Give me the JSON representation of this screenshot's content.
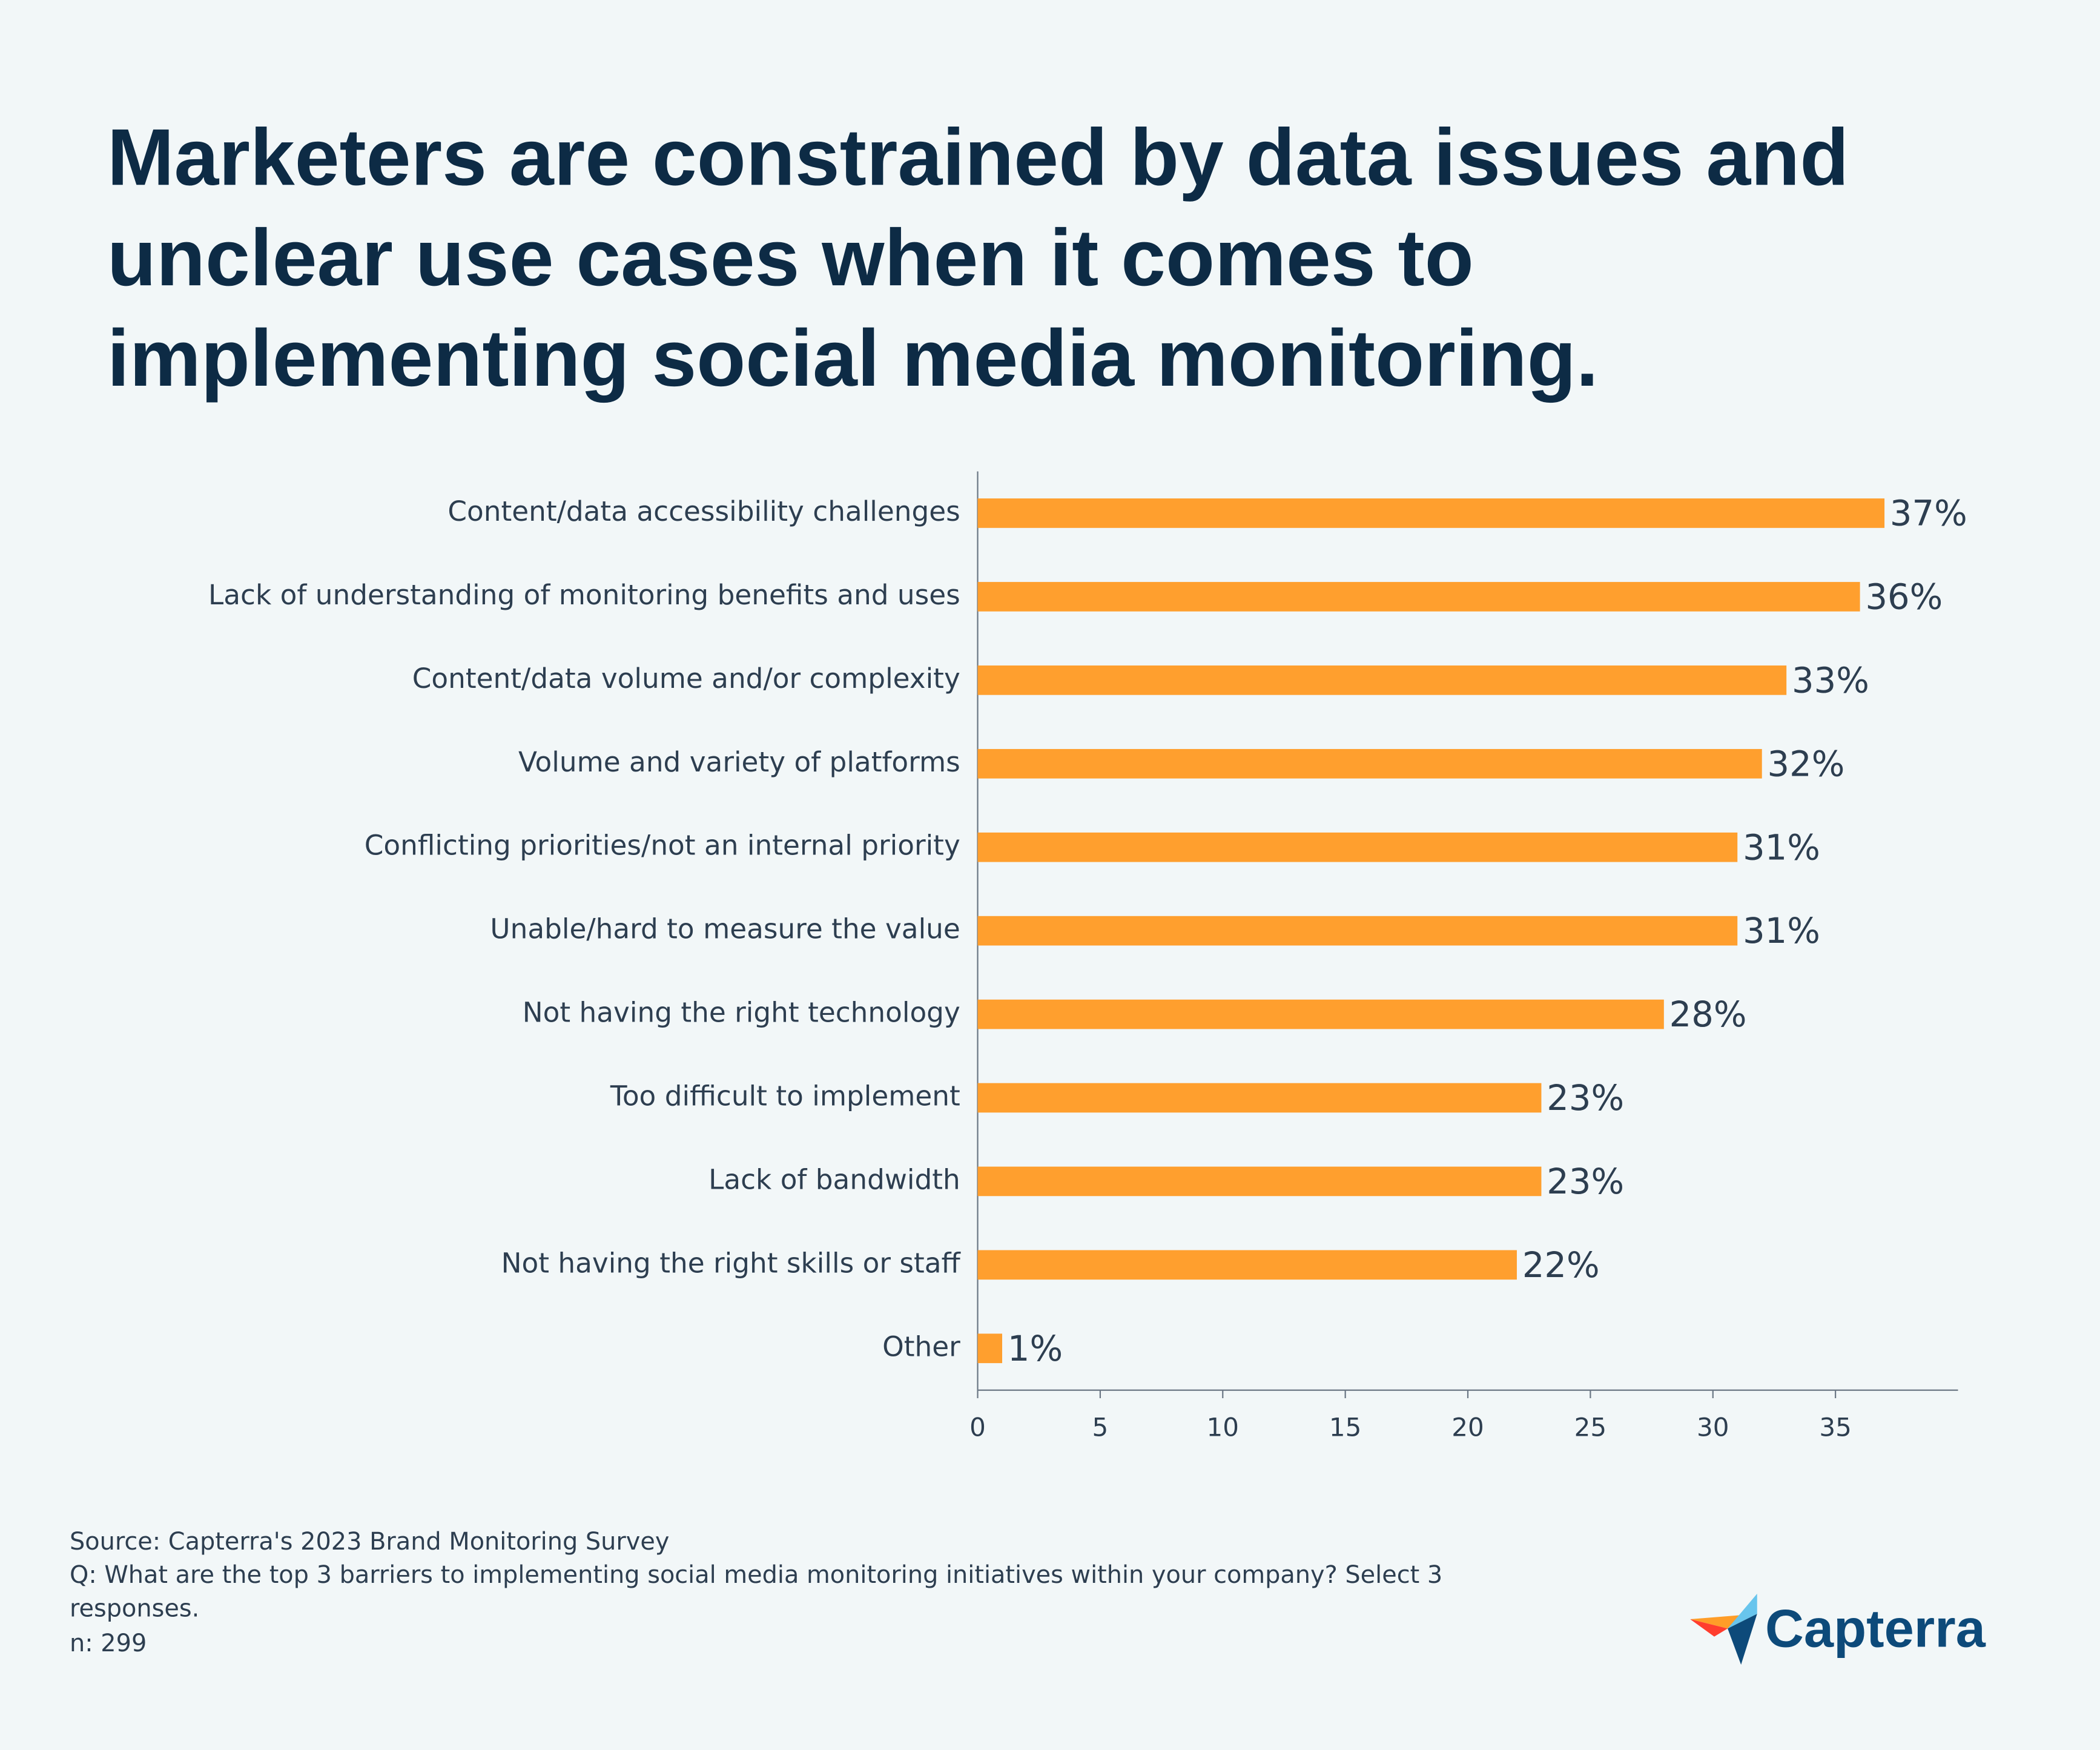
{
  "chart_data": {
    "type": "bar",
    "orientation": "horizontal",
    "title": "Marketers are constrained by data issues and unclear use cases when it comes to implementing social media monitoring.",
    "categories": [
      "Content/data accessibility challenges",
      "Lack of understanding of monitoring benefits and uses",
      "Content/data volume and/or complexity",
      "Volume and variety of platforms",
      "Conflicting priorities/not an internal priority",
      "Unable/hard to measure the value",
      "Not having the right technology",
      "Too difficult to implement",
      "Lack of bandwidth",
      "Not having the right skills or staff",
      "Other"
    ],
    "values": [
      37,
      36,
      33,
      32,
      31,
      31,
      28,
      23,
      23,
      22,
      1
    ],
    "value_labels": [
      "37%",
      "36%",
      "33%",
      "32%",
      "31%",
      "31%",
      "28%",
      "23%",
      "23%",
      "22%",
      "1%"
    ],
    "color": "#ff9f2e",
    "xlim": [
      0,
      40
    ],
    "xticks": [
      0,
      5,
      10,
      15,
      20,
      25,
      30,
      35
    ],
    "source": "Source: Capterra's 2023 Brand Monitoring Survey",
    "question": "Q: What are the top 3 barriers to implementing social media monitoring initiatives within your company? Select 3 responses.",
    "n": "n: 299",
    "brand": "Capterra"
  }
}
